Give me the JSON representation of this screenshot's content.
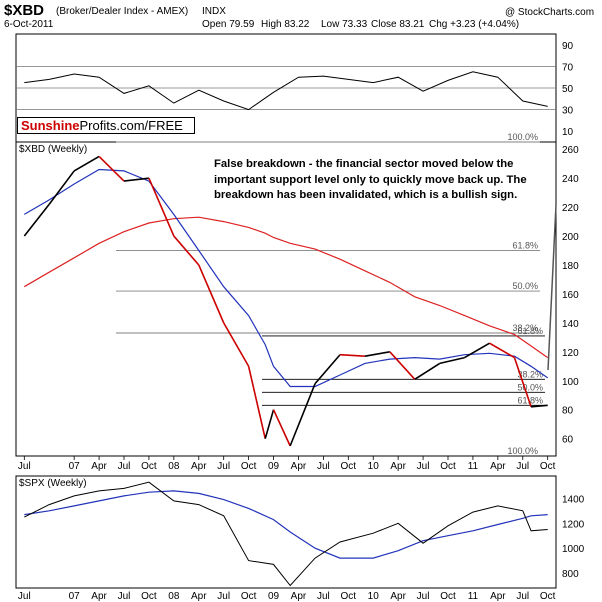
{
  "header": {
    "symbol": "$XBD",
    "description": "(Broker/Dealer Index - AMEX)",
    "exchange": "INDX",
    "date": "6-Oct-2011",
    "open": "Open 79.59",
    "high": "High 83.22",
    "low": "Low 73.33",
    "close": "Close 83.21",
    "change": "Chg +3.23 (+4.04%)",
    "watermark": "@ StockCharts.com"
  },
  "brand": {
    "part1": "Sunshine",
    "part2": "Profits.com/FREE"
  },
  "annotation": {
    "line1": "False breakdown - the financial sector moved below the",
    "line2": "important support level only to quickly move back up. The",
    "line3": "breakdown has been invalidated, which is a bullish sign."
  },
  "colors": {
    "price_up": "#000000",
    "price_down": "#cc0000",
    "ma_short": "#2233bb",
    "ma_long": "#dd2222",
    "rsi_line": "#000000",
    "fib_line": "#000000",
    "fib_long_line": "#808080",
    "spx_line": "#000000",
    "spx_ma": "#2233bb",
    "brand_red": "#cc0000",
    "arrow": "#555555"
  },
  "chart_data": [
    {
      "type": "line",
      "panel": "RSI",
      "y_ticks": [
        10,
        30,
        50,
        70,
        90
      ],
      "ylim": [
        0,
        100
      ],
      "reference_lines": [
        30,
        50,
        70
      ],
      "x": [
        "2006-07",
        "2006-10",
        "2007-01",
        "2007-04",
        "2007-07",
        "2007-10",
        "2008-01",
        "2008-04",
        "2008-07",
        "2008-10",
        "2009-01",
        "2009-04",
        "2009-07",
        "2009-10",
        "2010-01",
        "2010-04",
        "2010-07",
        "2010-10",
        "2011-01",
        "2011-04",
        "2011-07",
        "2011-10"
      ],
      "values": [
        55,
        58,
        63,
        60,
        45,
        52,
        36,
        48,
        38,
        30,
        46,
        60,
        61,
        58,
        55,
        60,
        47,
        57,
        65,
        60,
        38,
        33
      ]
    },
    {
      "type": "line",
      "title": "$XBD (Weekly)",
      "y_ticks": [
        60,
        80,
        100,
        120,
        140,
        160,
        180,
        200,
        220,
        240,
        260
      ],
      "ylim": [
        48,
        265
      ],
      "x_labels": [
        "Jul",
        "07",
        "Apr",
        "Jul",
        "Oct",
        "08",
        "Apr",
        "Jul",
        "Oct",
        "09",
        "Apr",
        "Jul",
        "Oct",
        "10",
        "Apr",
        "Jul",
        "Oct",
        "11",
        "Apr",
        "Jul",
        "Oct"
      ],
      "x": [
        "2006-07",
        "2006-10",
        "2007-01",
        "2007-04",
        "2007-07",
        "2007-10",
        "2008-01",
        "2008-04",
        "2008-07",
        "2008-10",
        "2008-12",
        "2009-01",
        "2009-03",
        "2009-06",
        "2009-09",
        "2009-12",
        "2010-03",
        "2010-06",
        "2010-09",
        "2010-12",
        "2011-03",
        "2011-06",
        "2011-08",
        "2011-10"
      ],
      "series": [
        {
          "name": "",
          "values": [
            200,
            222,
            245,
            255,
            238,
            240,
            200,
            180,
            140,
            110,
            60,
            80,
            55,
            98,
            118,
            117,
            120,
            101,
            112,
            116,
            126,
            116,
            82,
            83
          ]
        },
        {
          "name": "",
          "values": [
            215,
            225,
            236,
            246,
            245,
            238,
            215,
            190,
            165,
            145,
            125,
            110,
            96,
            96,
            104,
            112,
            115,
            116,
            115,
            118,
            119,
            117,
            110,
            102
          ]
        },
        {
          "name": "",
          "values": [
            165,
            175,
            185,
            195,
            203,
            209,
            212,
            213,
            210,
            206,
            202,
            199,
            195,
            191,
            184,
            176,
            168,
            158,
            152,
            145,
            138,
            132,
            124,
            116
          ]
        }
      ],
      "fib_levels": [
        {
          "label": "100.0%",
          "value": 265
        },
        {
          "label": "61.8%",
          "value": 190
        },
        {
          "label": "50.0%",
          "value": 162
        },
        {
          "label": "38.2%",
          "value": 133
        },
        {
          "label": "61.8%",
          "value": 131
        },
        {
          "label": "38.2%",
          "value": 101
        },
        {
          "label": "50.0%",
          "value": 92
        },
        {
          "label": "61.8%",
          "value": 83
        },
        {
          "label": "100.0%",
          "value": 48
        }
      ]
    },
    {
      "type": "line",
      "title": "$SPX (Weekly)",
      "y_ticks": [
        800,
        1000,
        1200,
        1400
      ],
      "ylim": [
        680,
        1580
      ],
      "x": [
        "2006-07",
        "2006-10",
        "2007-01",
        "2007-04",
        "2007-07",
        "2007-10",
        "2008-01",
        "2008-04",
        "2008-07",
        "2008-10",
        "2009-01",
        "2009-03",
        "2009-06",
        "2009-09",
        "2010-01",
        "2010-04",
        "2010-07",
        "2010-10",
        "2011-01",
        "2011-04",
        "2011-07",
        "2011-08",
        "2011-10"
      ],
      "series": [
        {
          "name": "",
          "values": [
            1250,
            1350,
            1420,
            1460,
            1480,
            1530,
            1380,
            1350,
            1260,
            900,
            870,
            700,
            920,
            1050,
            1120,
            1200,
            1040,
            1180,
            1290,
            1340,
            1300,
            1140,
            1150
          ]
        },
        {
          "name": "",
          "values": [
            1270,
            1300,
            1340,
            1380,
            1420,
            1450,
            1460,
            1440,
            1390,
            1320,
            1230,
            1130,
            1000,
            920,
            920,
            980,
            1060,
            1100,
            1140,
            1190,
            1240,
            1260,
            1270
          ]
        }
      ]
    }
  ]
}
